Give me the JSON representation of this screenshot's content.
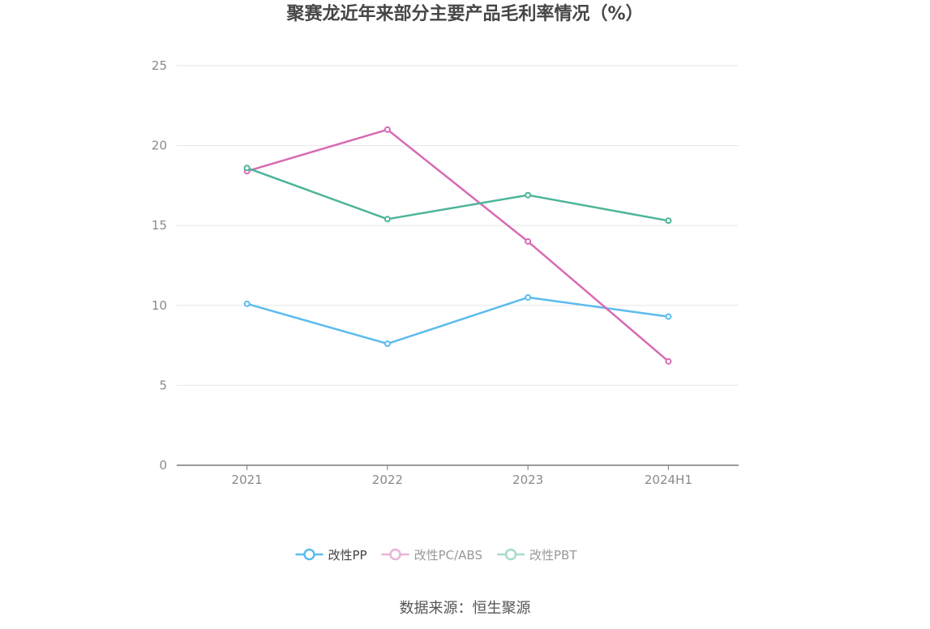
{
  "chart_data": {
    "type": "line",
    "title": "聚赛龙近年来部分主要产品毛利率情况（%）",
    "categories": [
      "2021",
      "2022",
      "2023",
      "2024H1"
    ],
    "series": [
      {
        "name": "改性PP",
        "values": [
          10.1,
          7.6,
          10.5,
          9.3
        ],
        "color": "#5bbcef"
      },
      {
        "name": "改性PC/ABS",
        "values": [
          18.4,
          21.0,
          14.0,
          6.5
        ],
        "color": "#d86bb4"
      },
      {
        "name": "改性PBT",
        "values": [
          18.6,
          15.4,
          16.9,
          15.3
        ],
        "color": "#4db59a"
      }
    ],
    "ylim": [
      0,
      25
    ],
    "yticks": [
      0,
      5,
      10,
      15,
      20,
      25
    ],
    "grid": true,
    "legend_position": "bottom-center",
    "legend_inactive_colors": [
      "#5bbcef",
      "#e8b3d8",
      "#a6dccd"
    ]
  },
  "source": "数据来源：恒生聚源"
}
